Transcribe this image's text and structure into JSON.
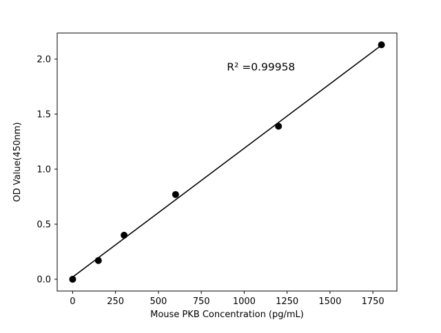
{
  "chart_data": {
    "type": "scatter",
    "title": "",
    "xlabel": "Mouse PKB Concentration (pg/mL)",
    "ylabel": "OD Value(450nm)",
    "annotation": {
      "text": "R² =0.99958",
      "fx": 0.6,
      "fy": 0.855
    },
    "x": [
      0,
      150,
      300,
      600,
      1200,
      1800
    ],
    "y": [
      0.0,
      0.17,
      0.4,
      0.77,
      1.39,
      2.13
    ],
    "fit_line": {
      "x1": 0,
      "y1": 0.02,
      "x2": 1800,
      "y2": 2.126
    },
    "xlim": [
      -90,
      1890
    ],
    "ylim": [
      -0.107,
      2.237
    ],
    "xticks": [
      0,
      250,
      500,
      750,
      1000,
      1250,
      1500,
      1750
    ],
    "yticks": [
      0.0,
      0.5,
      1.0,
      1.5,
      2.0
    ],
    "grid": false,
    "legend": null,
    "marker_color": "#000000",
    "line_color": "#000000",
    "axis_color": "#000000",
    "background_color": "#ffffff"
  }
}
